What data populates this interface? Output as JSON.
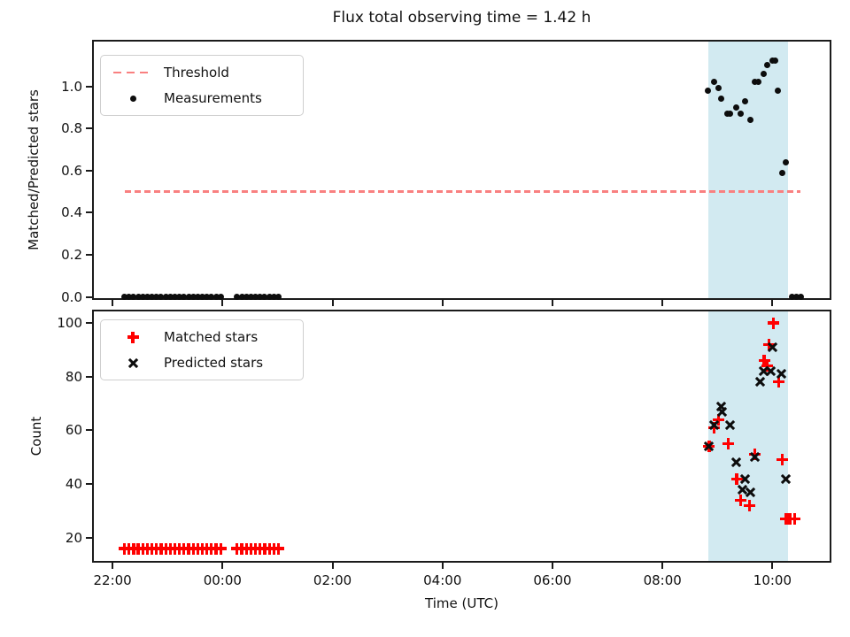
{
  "figure": {
    "title": "Flux total observing time = 1.42 h"
  },
  "x_axis": {
    "label": "Time (UTC)",
    "ticks": [
      "22:00",
      "00:00",
      "02:00",
      "04:00",
      "06:00",
      "08:00",
      "10:00"
    ],
    "xlim_hours_from_2100": [
      21.66,
      35.04
    ]
  },
  "shaded_region": {
    "start": "08:50",
    "end": "10:17",
    "color": "#ADD8E6"
  },
  "colors": {
    "threshold": "#F98080",
    "measurements": "#0D0D0D",
    "matched": "#FF0000",
    "predicted": "#0D0D0D"
  },
  "chart_data": [
    {
      "type": "scatter",
      "title": "Flux total observing time = 1.42 h",
      "ylabel": "Matched/Predicted stars",
      "ylim": [
        -0.005,
        1.212
      ],
      "yticks": [
        0.0,
        0.2,
        0.4,
        0.6,
        0.8,
        1.0
      ],
      "ytick_decimals": 1,
      "grid": false,
      "legend_position": "upper left",
      "legend": [
        "Threshold",
        "Measurements"
      ],
      "threshold": {
        "value": 0.5,
        "from": "22:13",
        "to": "10:31"
      },
      "series": [
        {
          "name": "Measurements",
          "marker": "dot",
          "points": [
            [
              "22:13",
              0
            ],
            [
              "22:18",
              0
            ],
            [
              "22:23",
              0
            ],
            [
              "22:28",
              0
            ],
            [
              "22:33",
              0
            ],
            [
              "22:38",
              0
            ],
            [
              "22:43",
              0
            ],
            [
              "22:48",
              0
            ],
            [
              "22:53",
              0
            ],
            [
              "22:58",
              0
            ],
            [
              "23:03",
              0
            ],
            [
              "23:08",
              0
            ],
            [
              "23:13",
              0
            ],
            [
              "23:18",
              0
            ],
            [
              "23:23",
              0
            ],
            [
              "23:28",
              0
            ],
            [
              "23:33",
              0
            ],
            [
              "23:38",
              0
            ],
            [
              "23:43",
              0
            ],
            [
              "23:48",
              0
            ],
            [
              "23:53",
              0
            ],
            [
              "23:58",
              0
            ],
            [
              "00:16",
              0
            ],
            [
              "00:21",
              0
            ],
            [
              "00:26",
              0
            ],
            [
              "00:31",
              0
            ],
            [
              "00:36",
              0
            ],
            [
              "00:41",
              0
            ],
            [
              "00:46",
              0
            ],
            [
              "00:51",
              0
            ],
            [
              "00:56",
              0
            ],
            [
              "01:01",
              0
            ],
            [
              "08:50",
              0.98
            ],
            [
              "08:56",
              1.02
            ],
            [
              "09:01",
              0.99
            ],
            [
              "09:04",
              0.94
            ],
            [
              "09:11",
              0.87
            ],
            [
              "09:14",
              0.87
            ],
            [
              "09:20",
              0.9
            ],
            [
              "09:25",
              0.87
            ],
            [
              "09:30",
              0.93
            ],
            [
              "09:36",
              0.84
            ],
            [
              "09:41",
              1.02
            ],
            [
              "09:45",
              1.02
            ],
            [
              "09:50",
              1.06
            ],
            [
              "09:54",
              1.1
            ],
            [
              "10:00",
              1.12
            ],
            [
              "10:03",
              1.12
            ],
            [
              "10:06",
              0.98
            ],
            [
              "10:11",
              0.59
            ],
            [
              "10:15",
              0.64
            ],
            [
              "10:21",
              0
            ],
            [
              "10:26",
              0
            ],
            [
              "10:31",
              0
            ]
          ]
        }
      ]
    },
    {
      "type": "scatter",
      "ylabel": "Count",
      "ylim": [
        11.4,
        104.3
      ],
      "yticks": [
        20,
        40,
        60,
        80,
        100
      ],
      "ytick_decimals": 0,
      "grid": false,
      "legend_position": "upper left",
      "legend": [
        "Matched stars",
        "Predicted stars"
      ],
      "xticklabels": true,
      "series": [
        {
          "name": "Matched stars",
          "marker": "plus",
          "points": [
            [
              "22:13",
              16
            ],
            [
              "22:18",
              16
            ],
            [
              "22:23",
              16
            ],
            [
              "22:28",
              16
            ],
            [
              "22:33",
              16
            ],
            [
              "22:38",
              16
            ],
            [
              "22:43",
              16
            ],
            [
              "22:48",
              16
            ],
            [
              "22:53",
              16
            ],
            [
              "22:58",
              16
            ],
            [
              "23:03",
              16
            ],
            [
              "23:08",
              16
            ],
            [
              "23:13",
              16
            ],
            [
              "23:18",
              16
            ],
            [
              "23:23",
              16
            ],
            [
              "23:28",
              16
            ],
            [
              "23:33",
              16
            ],
            [
              "23:38",
              16
            ],
            [
              "23:43",
              16
            ],
            [
              "23:48",
              16
            ],
            [
              "23:53",
              16
            ],
            [
              "23:58",
              16
            ],
            [
              "00:16",
              16
            ],
            [
              "00:21",
              16
            ],
            [
              "00:26",
              16
            ],
            [
              "00:31",
              16
            ],
            [
              "00:36",
              16
            ],
            [
              "00:41",
              16
            ],
            [
              "00:46",
              16
            ],
            [
              "00:51",
              16
            ],
            [
              "00:56",
              16
            ],
            [
              "01:01",
              16
            ],
            [
              "08:51",
              54
            ],
            [
              "08:56",
              61
            ],
            [
              "09:01",
              64
            ],
            [
              "09:12",
              55
            ],
            [
              "09:21",
              42
            ],
            [
              "09:25",
              34
            ],
            [
              "09:35",
              32
            ],
            [
              "09:41",
              51
            ],
            [
              "09:51",
              86
            ],
            [
              "09:54",
              84
            ],
            [
              "09:56",
              92
            ],
            [
              "10:01",
              100
            ],
            [
              "10:07",
              78
            ],
            [
              "10:11",
              49
            ],
            [
              "10:15",
              27
            ],
            [
              "10:19",
              27
            ],
            [
              "10:24",
              27
            ]
          ]
        },
        {
          "name": "Predicted stars",
          "marker": "cross",
          "points": [
            [
              "08:51",
              54
            ],
            [
              "08:56",
              62
            ],
            [
              "09:04",
              69
            ],
            [
              "09:05",
              67
            ],
            [
              "09:14",
              62
            ],
            [
              "09:20",
              48
            ],
            [
              "09:27",
              38
            ],
            [
              "09:30",
              42
            ],
            [
              "09:36",
              37
            ],
            [
              "09:41",
              50
            ],
            [
              "09:47",
              78
            ],
            [
              "09:50",
              82
            ],
            [
              "09:58",
              82
            ],
            [
              "10:00",
              91
            ],
            [
              "10:10",
              81
            ],
            [
              "10:15",
              42
            ]
          ]
        }
      ]
    }
  ]
}
